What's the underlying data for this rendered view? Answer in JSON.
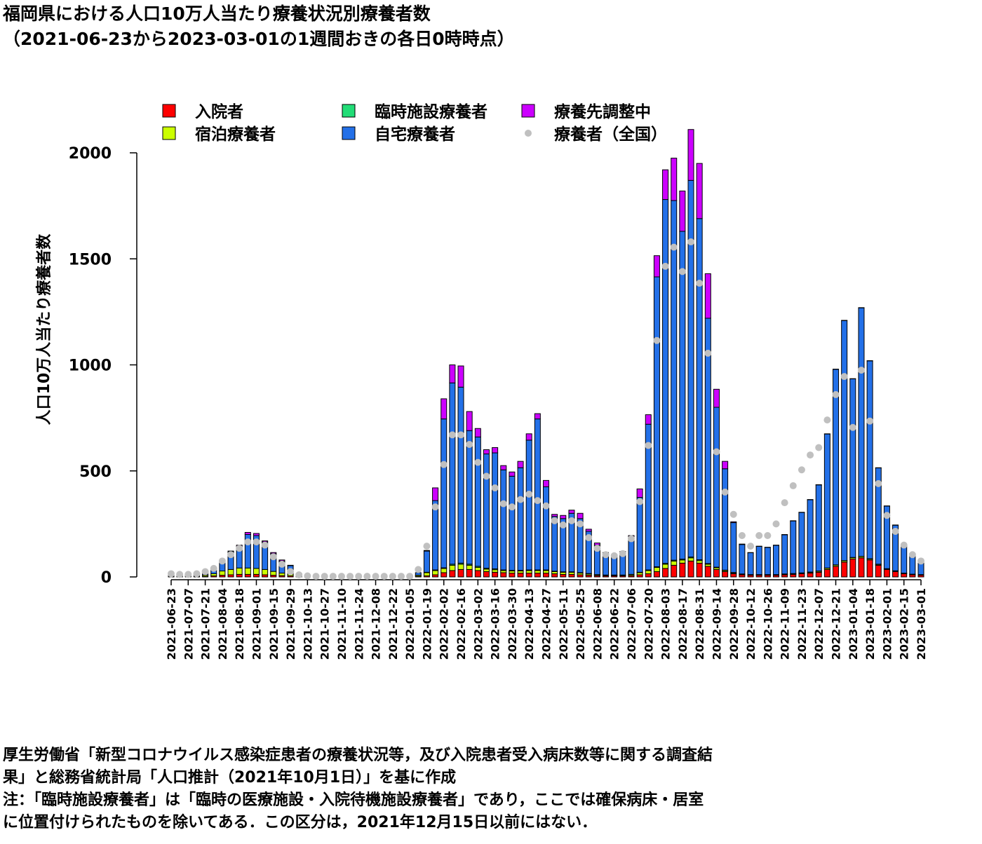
{
  "chart_data": {
    "type": "bar",
    "title": "福岡県における人口10万人当たり療養状況別療養者数",
    "subtitle": "（2021-06-23から2023-03-01の1週間おきの各日0時時点）",
    "y_label": "人口10万人当たり療養者数",
    "stacked": true,
    "ylim": [
      0,
      2000
    ],
    "yticks": [
      0,
      500,
      1000,
      1500,
      2000
    ],
    "legend_position": "top",
    "categories": [
      "2021-06-23",
      null,
      "2021-07-07",
      null,
      "2021-07-21",
      null,
      "2021-08-04",
      null,
      "2021-08-18",
      null,
      "2021-09-01",
      null,
      "2021-09-15",
      null,
      "2021-09-29",
      null,
      "2021-10-13",
      null,
      "2021-10-27",
      null,
      "2021-11-10",
      null,
      "2021-11-24",
      null,
      "2021-12-08",
      null,
      "2021-12-22",
      null,
      "2022-01-05",
      null,
      "2022-01-19",
      null,
      "2022-02-02",
      null,
      "2022-02-16",
      null,
      "2022-03-02",
      null,
      "2022-03-16",
      null,
      "2022-03-30",
      null,
      "2022-04-13",
      null,
      "2022-04-27",
      null,
      "2022-05-11",
      null,
      "2022-05-25",
      null,
      "2022-06-08",
      null,
      "2022-06-22",
      null,
      "2022-07-06",
      null,
      "2022-07-20",
      null,
      "2022-08-03",
      null,
      "2022-08-17",
      null,
      "2022-08-31",
      null,
      "2022-09-14",
      null,
      "2022-09-28",
      null,
      "2022-10-12",
      null,
      "2022-10-26",
      null,
      "2022-11-09",
      null,
      "2022-11-23",
      null,
      "2022-12-07",
      null,
      "2022-12-21",
      null,
      "2023-01-04",
      null,
      "2023-01-18",
      null,
      "2023-02-01",
      null,
      "2023-02-15",
      null,
      "2023-03-01"
    ],
    "series": [
      {
        "name": "入院者",
        "color": "#ff0000",
        "values": [
          2,
          2,
          2,
          2,
          3,
          5,
          8,
          10,
          12,
          12,
          12,
          10,
          8,
          6,
          5,
          3,
          2,
          2,
          2,
          2,
          2,
          2,
          2,
          2,
          2,
          2,
          2,
          2,
          2,
          3,
          5,
          10,
          20,
          30,
          35,
          35,
          30,
          25,
          22,
          20,
          18,
          18,
          18,
          18,
          18,
          15,
          12,
          12,
          10,
          8,
          6,
          5,
          5,
          5,
          6,
          10,
          15,
          25,
          40,
          55,
          65,
          75,
          65,
          50,
          35,
          25,
          15,
          10,
          8,
          8,
          8,
          8,
          10,
          12,
          15,
          18,
          22,
          35,
          50,
          70,
          85,
          90,
          80,
          55,
          35,
          25,
          15,
          10,
          8
        ]
      },
      {
        "name": "宿泊療養者",
        "color": "#ccff00",
        "values": [
          3,
          3,
          3,
          3,
          6,
          10,
          20,
          25,
          30,
          30,
          28,
          25,
          18,
          12,
          8,
          3,
          1,
          1,
          1,
          1,
          1,
          1,
          1,
          1,
          1,
          1,
          1,
          1,
          1,
          5,
          15,
          20,
          20,
          25,
          25,
          20,
          15,
          12,
          12,
          10,
          10,
          10,
          12,
          12,
          12,
          10,
          10,
          10,
          8,
          6,
          4,
          3,
          3,
          3,
          5,
          10,
          15,
          20,
          20,
          20,
          15,
          15,
          12,
          10,
          8,
          5,
          4,
          3,
          2,
          2,
          2,
          2,
          3,
          3,
          3,
          4,
          5,
          6,
          6,
          6,
          6,
          6,
          5,
          4,
          3,
          3,
          2,
          2,
          2
        ]
      },
      {
        "name": "臨時施設療養者",
        "color": "#22dd77",
        "values": [
          null,
          null,
          null,
          null,
          null,
          null,
          null,
          null,
          null,
          null,
          null,
          null,
          null,
          null,
          null,
          null,
          null,
          null,
          null,
          null,
          null,
          null,
          null,
          null,
          null,
          null,
          0,
          0,
          0,
          0,
          2,
          3,
          3,
          5,
          5,
          5,
          5,
          4,
          4,
          3,
          3,
          3,
          3,
          3,
          3,
          2,
          2,
          2,
          2,
          2,
          1,
          1,
          1,
          1,
          1,
          2,
          3,
          3,
          4,
          4,
          4,
          4,
          4,
          3,
          3,
          2,
          2,
          1,
          1,
          1,
          1,
          1,
          1,
          1,
          1,
          1,
          1,
          1,
          1,
          1,
          1,
          1,
          1,
          1,
          1,
          1,
          1,
          1,
          1
        ]
      },
      {
        "name": "自宅療養者",
        "color": "#2370e8",
        "values": [
          5,
          5,
          5,
          7,
          11,
          20,
          42,
          85,
          103,
          158,
          155,
          130,
          84,
          57,
          40,
          8,
          2,
          2,
          2,
          2,
          2,
          2,
          2,
          2,
          2,
          2,
          2,
          2,
          2,
          12,
          100,
          327,
          702,
          855,
          830,
          630,
          610,
          539,
          547,
          472,
          444,
          484,
          612,
          712,
          392,
          258,
          251,
          276,
          255,
          199,
          139,
          101,
          91,
          106,
          173,
          353,
          687,
          1367,
          1716,
          1696,
          1546,
          1776,
          1609,
          1157,
          754,
          478,
          235,
          139,
          103,
          133,
          128,
          138,
          185,
          248,
          285,
          341,
          406,
          632,
          922,
          1132,
          842,
          1172,
          933,
          454,
          295,
          215,
          131,
          96,
          58
        ]
      },
      {
        "name": "療養先調整中",
        "color": "#cc00ff",
        "values": [
          0,
          0,
          0,
          0,
          0,
          0,
          0,
          2,
          5,
          10,
          10,
          5,
          5,
          5,
          2,
          1,
          0,
          0,
          0,
          0,
          0,
          0,
          0,
          0,
          0,
          0,
          0,
          0,
          0,
          0,
          3,
          60,
          95,
          85,
          100,
          90,
          40,
          20,
          25,
          20,
          20,
          30,
          30,
          25,
          30,
          10,
          15,
          15,
          25,
          10,
          10,
          5,
          5,
          5,
          10,
          40,
          45,
          100,
          140,
          200,
          190,
          240,
          260,
          210,
          85,
          35,
          4,
          2,
          1,
          1,
          1,
          1,
          1,
          1,
          1,
          1,
          1,
          1,
          1,
          1,
          1,
          1,
          1,
          1,
          1,
          1,
          1,
          1,
          1
        ]
      }
    ],
    "overlay": {
      "name": "療養者（全国）",
      "type": "scatter",
      "color": "#c0c0c0",
      "values": [
        15,
        12,
        12,
        15,
        25,
        40,
        75,
        105,
        135,
        165,
        165,
        150,
        95,
        60,
        25,
        10,
        5,
        3,
        3,
        3,
        3,
        3,
        3,
        3,
        3,
        3,
        3,
        3,
        3,
        35,
        145,
        330,
        530,
        670,
        670,
        625,
        540,
        475,
        420,
        345,
        330,
        365,
        390,
        360,
        335,
        265,
        245,
        265,
        250,
        185,
        135,
        105,
        100,
        110,
        180,
        355,
        620,
        1115,
        1465,
        1555,
        1440,
        1580,
        1385,
        1055,
        590,
        400,
        295,
        195,
        145,
        195,
        195,
        250,
        350,
        430,
        505,
        575,
        610,
        740,
        860,
        945,
        705,
        975,
        735,
        440,
        290,
        215,
        150,
        105,
        75
      ]
    },
    "notes": [
      "厚生労働省「新型コロナウイルス感染症患者の療養状況等，及び入院患者受入病床数等に関する調査結",
      "果」と総務省統計局「人口推計（2021年10月1日）」を基に作成",
      "注：「臨時施設療養者」は「臨時の医療施設・入院待機施設療養者」であり，ここでは確保病床・居室",
      "に位置付けられたものを除いてある．この区分は，2021年12月15日以前にはない．"
    ]
  }
}
